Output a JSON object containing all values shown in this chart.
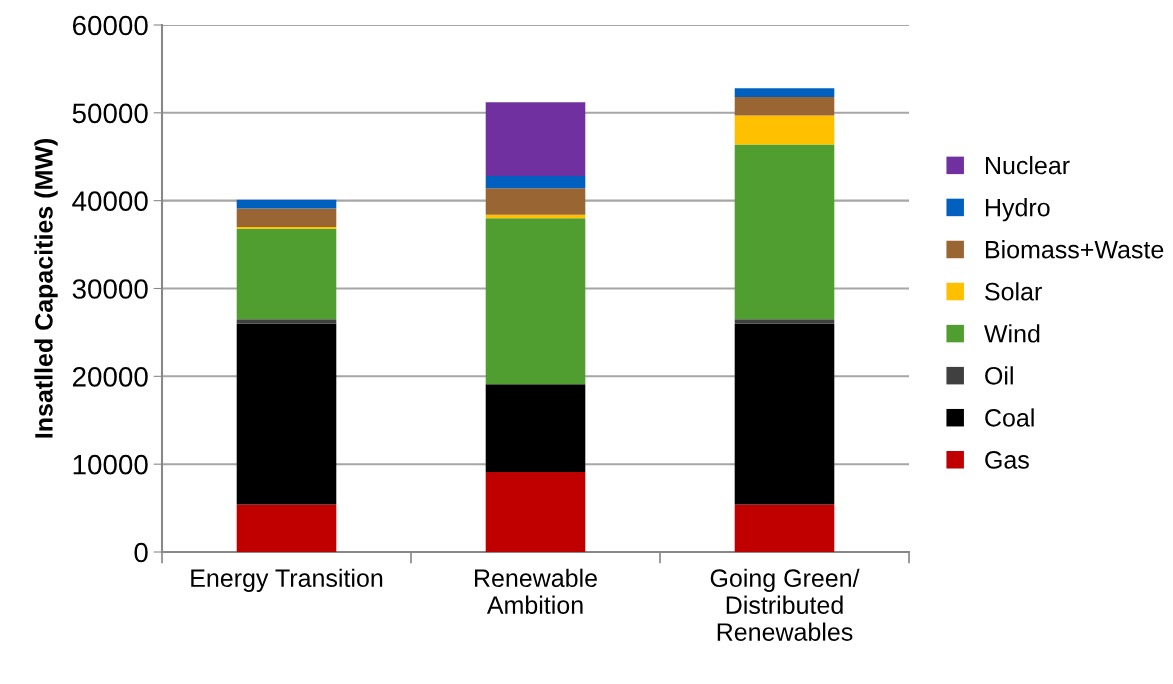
{
  "chart_data": {
    "type": "bar",
    "stacked": true,
    "ylabel": "Insatlled Capacities (MW)",
    "categories": [
      "Energy Transition",
      "Renewable\nAmbition",
      "Going Green/\nDistributed\nRenewables"
    ],
    "series": [
      {
        "name": "Gas",
        "color": "#c00000",
        "values": [
          5400,
          9100,
          5400
        ]
      },
      {
        "name": "Coal",
        "color": "#000000",
        "values": [
          20600,
          10000,
          20600
        ]
      },
      {
        "name": "Oil",
        "color": "#404040",
        "values": [
          500,
          0,
          500
        ]
      },
      {
        "name": "Wind",
        "color": "#509e2f",
        "values": [
          10300,
          18900,
          19900
        ]
      },
      {
        "name": "Solar",
        "color": "#ffc000",
        "values": [
          200,
          400,
          3300
        ]
      },
      {
        "name": "Biomass+Waste",
        "color": "#996633",
        "values": [
          2100,
          3000,
          2100
        ]
      },
      {
        "name": "Hydro",
        "color": "#0060c0",
        "values": [
          1000,
          1400,
          1000
        ]
      },
      {
        "name": "Nuclear",
        "color": "#7030a0",
        "values": [
          0,
          8400,
          0
        ]
      }
    ],
    "ylim": [
      0,
      60000
    ],
    "yticks": [
      0,
      10000,
      20000,
      30000,
      40000,
      50000,
      60000
    ],
    "grid": "y",
    "legend": "right"
  }
}
